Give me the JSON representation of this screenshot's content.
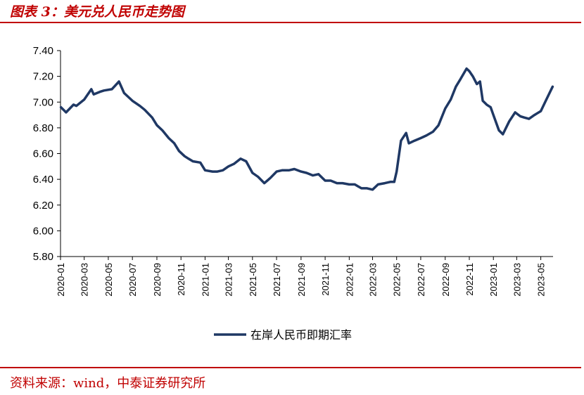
{
  "header": {
    "title": "图表 3：美元兑人民币走势图"
  },
  "footer": {
    "source": "资料来源：wind，中泰证券研究所"
  },
  "chart_data": {
    "type": "line",
    "title": "",
    "xlabel": "",
    "ylabel": "",
    "ylim": [
      5.8,
      7.4
    ],
    "yticks": [
      "5.80",
      "6.00",
      "6.20",
      "6.40",
      "6.60",
      "6.80",
      "7.00",
      "7.20",
      "7.40"
    ],
    "xticks": [
      "2020-01",
      "2020-03",
      "2020-05",
      "2020-07",
      "2020-09",
      "2020-11",
      "2021-01",
      "2021-03",
      "2021-05",
      "2021-07",
      "2021-09",
      "2021-11",
      "2022-01",
      "2022-03",
      "2022-05",
      "2022-07",
      "2022-09",
      "2022-11",
      "2023-01",
      "2023-03",
      "2023-05"
    ],
    "grid": false,
    "legend_position": "bottom-center",
    "series": [
      {
        "name": "在岸人民币即期汇率",
        "color": "#1f3864",
        "x": [
          "2020-01-02",
          "2020-01-15",
          "2020-02-03",
          "2020-02-10",
          "2020-03-01",
          "2020-03-19",
          "2020-03-25",
          "2020-04-10",
          "2020-04-20",
          "2020-05-10",
          "2020-05-28",
          "2020-06-10",
          "2020-07-01",
          "2020-07-20",
          "2020-08-01",
          "2020-08-20",
          "2020-09-01",
          "2020-09-15",
          "2020-10-01",
          "2020-10-15",
          "2020-10-27",
          "2020-11-10",
          "2020-11-20",
          "2020-12-01",
          "2020-12-20",
          "2021-01-01",
          "2021-01-20",
          "2021-02-01",
          "2021-02-15",
          "2021-03-01",
          "2021-03-15",
          "2021-04-01",
          "2021-04-15",
          "2021-05-01",
          "2021-05-15",
          "2021-05-31",
          "2021-06-15",
          "2021-07-01",
          "2021-07-15",
          "2021-08-01",
          "2021-08-15",
          "2021-09-01",
          "2021-09-15",
          "2021-10-01",
          "2021-10-15",
          "2021-11-01",
          "2021-11-15",
          "2021-12-01",
          "2021-12-15",
          "2022-01-01",
          "2022-01-15",
          "2022-02-01",
          "2022-02-15",
          "2022-03-01",
          "2022-03-15",
          "2022-04-01",
          "2022-04-15",
          "2022-04-25",
          "2022-05-01",
          "2022-05-12",
          "2022-05-25",
          "2022-06-01",
          "2022-06-15",
          "2022-07-01",
          "2022-07-15",
          "2022-08-01",
          "2022-08-15",
          "2022-09-01",
          "2022-09-15",
          "2022-09-28",
          "2022-10-10",
          "2022-10-25",
          "2022-11-01",
          "2022-11-10",
          "2022-11-20",
          "2022-11-28",
          "2022-12-05",
          "2022-12-15",
          "2022-12-25",
          "2023-01-01",
          "2023-01-15",
          "2023-01-25",
          "2023-02-10",
          "2023-02-25",
          "2023-03-10",
          "2023-03-20",
          "2023-04-01",
          "2023-04-15",
          "2023-05-01",
          "2023-05-15",
          "2023-05-31"
        ],
        "y": [
          6.96,
          6.92,
          6.98,
          6.97,
          7.02,
          7.1,
          7.06,
          7.08,
          7.09,
          7.1,
          7.16,
          7.07,
          7.01,
          6.97,
          6.94,
          6.88,
          6.82,
          6.78,
          6.72,
          6.68,
          6.62,
          6.58,
          6.56,
          6.54,
          6.53,
          6.47,
          6.46,
          6.46,
          6.47,
          6.5,
          6.52,
          6.56,
          6.54,
          6.45,
          6.42,
          6.37,
          6.41,
          6.46,
          6.47,
          6.47,
          6.48,
          6.46,
          6.45,
          6.43,
          6.44,
          6.39,
          6.39,
          6.37,
          6.37,
          6.36,
          6.36,
          6.33,
          6.33,
          6.32,
          6.36,
          6.37,
          6.38,
          6.38,
          6.46,
          6.7,
          6.76,
          6.68,
          6.7,
          6.72,
          6.74,
          6.77,
          6.82,
          6.95,
          7.02,
          7.12,
          7.18,
          7.26,
          7.24,
          7.2,
          7.14,
          7.16,
          7.01,
          6.98,
          6.96,
          6.9,
          6.78,
          6.75,
          6.85,
          6.92,
          6.89,
          6.88,
          6.87,
          6.9,
          6.93,
          7.02,
          7.12
        ]
      }
    ]
  }
}
